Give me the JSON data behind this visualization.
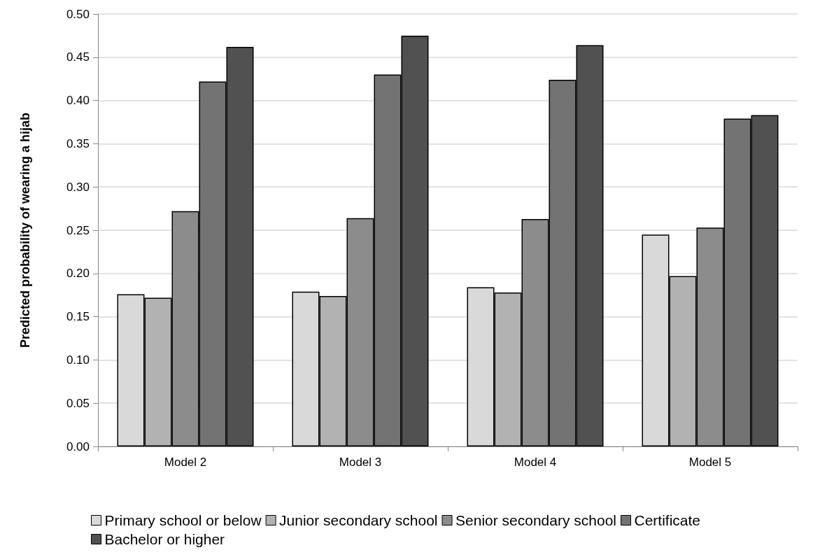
{
  "chart_data": {
    "type": "bar",
    "ylabel": "Predicted probability of wearing a hijab",
    "categories": [
      "Model 2",
      "Model 3",
      "Model 4",
      "Model 5"
    ],
    "series": [
      {
        "name": "Primary school or below",
        "color": "#d9d9d9",
        "values": [
          0.176,
          0.179,
          0.184,
          0.245
        ]
      },
      {
        "name": "Junior secondary school",
        "color": "#b2b2b2",
        "values": [
          0.172,
          0.174,
          0.178,
          0.197
        ]
      },
      {
        "name": "Senior secondary school",
        "color": "#8c8c8c",
        "values": [
          0.272,
          0.264,
          0.263,
          0.253
        ]
      },
      {
        "name": "Certificate",
        "color": "#737373",
        "values": [
          0.422,
          0.43,
          0.424,
          0.379
        ]
      },
      {
        "name": "Bachelor or higher",
        "color": "#515151",
        "values": [
          0.462,
          0.475,
          0.464,
          0.383
        ]
      }
    ],
    "ylim": [
      0,
      0.5
    ],
    "yticks": [
      {
        "value": 0,
        "label": "0.00"
      },
      0.05,
      {
        "value": 0.1,
        "label": "0.10"
      },
      0.15,
      {
        "value": 0.2,
        "label": "0.20"
      },
      0.25,
      {
        "value": 0.3,
        "label": "0.30"
      },
      0.35,
      {
        "value": 0.4,
        "label": "0.40"
      },
      0.45,
      {
        "value": 0.5,
        "label": "0.50"
      }
    ],
    "grid": "y",
    "legend": "bottom"
  }
}
